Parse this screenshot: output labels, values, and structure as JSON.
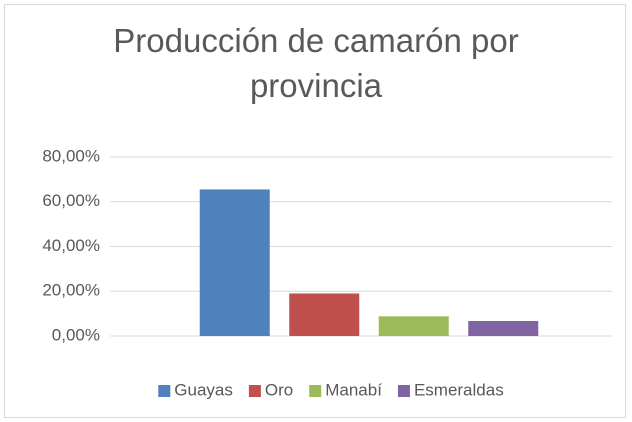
{
  "chart_data": {
    "type": "bar",
    "title": "Producción de camarón por provincia",
    "categories": [
      null
    ],
    "series": [
      {
        "name": "Guayas",
        "color": "#4f81bd",
        "values": [
          65.5
        ]
      },
      {
        "name": "Oro",
        "color": "#c0504d",
        "values": [
          19
        ]
      },
      {
        "name": "Manabí",
        "color": "#9bbb59",
        "values": [
          8.8
        ]
      },
      {
        "name": "Esmeraldas",
        "color": "#8064a2",
        "values": [
          6.7
        ]
      }
    ],
    "ylim": [
      0,
      80
    ],
    "yticks": [
      {
        "value": 0,
        "label": "0,00%"
      },
      {
        "value": 20,
        "label": "20,00%"
      },
      {
        "value": 40,
        "label": "40,00%"
      },
      {
        "value": 60,
        "label": "60,00%"
      },
      {
        "value": 80,
        "label": "80,00%"
      }
    ],
    "grid": true,
    "legend": "bottom"
  }
}
